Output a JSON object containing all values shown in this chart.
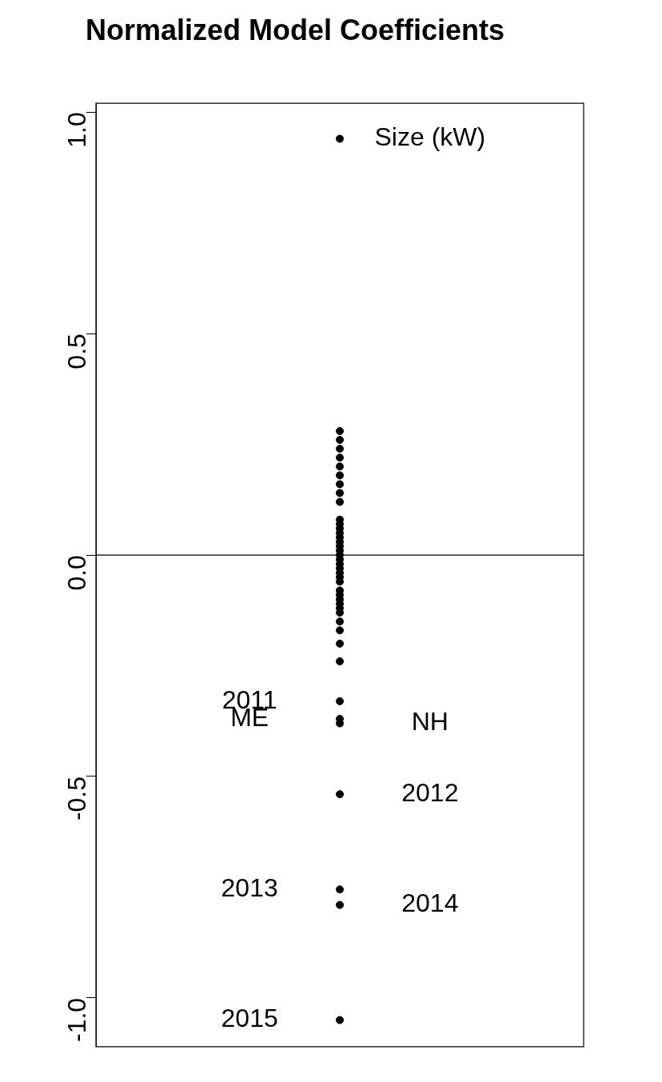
{
  "chart_data": {
    "type": "scatter",
    "title": "Normalized Model Coefficients",
    "categories": [
      null
    ],
    "color": "#000000",
    "marker": "circle",
    "series": [
      {
        "name": "Size (kW)",
        "values": [
          0.94
        ]
      },
      {
        "values": [
          0.28
        ]
      },
      {
        "values": [
          0.26
        ]
      },
      {
        "values": [
          0.24
        ]
      },
      {
        "values": [
          0.22
        ]
      },
      {
        "values": [
          0.2
        ]
      },
      {
        "values": [
          0.18
        ]
      },
      {
        "values": [
          0.16
        ]
      },
      {
        "values": [
          0.14
        ]
      },
      {
        "values": [
          0.12
        ]
      },
      {
        "values": [
          0.08
        ]
      },
      {
        "values": [
          0.07
        ]
      },
      {
        "values": [
          0.06
        ]
      },
      {
        "values": [
          0.05
        ]
      },
      {
        "values": [
          0.04
        ]
      },
      {
        "values": [
          0.03
        ]
      },
      {
        "values": [
          0.02
        ]
      },
      {
        "values": [
          0.01
        ]
      },
      {
        "values": [
          0.0
        ]
      },
      {
        "values": [
          -0.01
        ]
      },
      {
        "values": [
          -0.02
        ]
      },
      {
        "values": [
          -0.03
        ]
      },
      {
        "values": [
          -0.04
        ]
      },
      {
        "values": [
          -0.05
        ]
      },
      {
        "values": [
          -0.06
        ]
      },
      {
        "values": [
          -0.08
        ]
      },
      {
        "values": [
          -0.09
        ]
      },
      {
        "values": [
          -0.1
        ]
      },
      {
        "values": [
          -0.11
        ]
      },
      {
        "values": [
          -0.12
        ]
      },
      {
        "values": [
          -0.13
        ]
      },
      {
        "values": [
          -0.15
        ]
      },
      {
        "values": [
          -0.17
        ]
      },
      {
        "values": [
          -0.2
        ]
      },
      {
        "values": [
          -0.24
        ]
      },
      {
        "name": "2011",
        "values": [
          -0.33
        ]
      },
      {
        "name": "ME",
        "values": [
          -0.37
        ]
      },
      {
        "name": "NH",
        "values": [
          -0.38
        ]
      },
      {
        "name": "2012",
        "values": [
          -0.54
        ]
      },
      {
        "name": "2013",
        "values": [
          -0.755
        ]
      },
      {
        "name": "2014",
        "values": [
          -0.79
        ]
      },
      {
        "name": "2015",
        "values": [
          -1.05
        ]
      }
    ],
    "ylim": [
      -1.11,
      1.02
    ],
    "yticks": [
      {
        "value": -1,
        "label": "-1.0"
      },
      -0.5,
      {
        "value": 0,
        "label": "0.0"
      },
      0.5,
      {
        "value": 1,
        "label": "1.0"
      }
    ],
    "tick_labels": "y",
    "ref_lines": [
      {
        "axis": "y",
        "value": 0
      }
    ]
  }
}
